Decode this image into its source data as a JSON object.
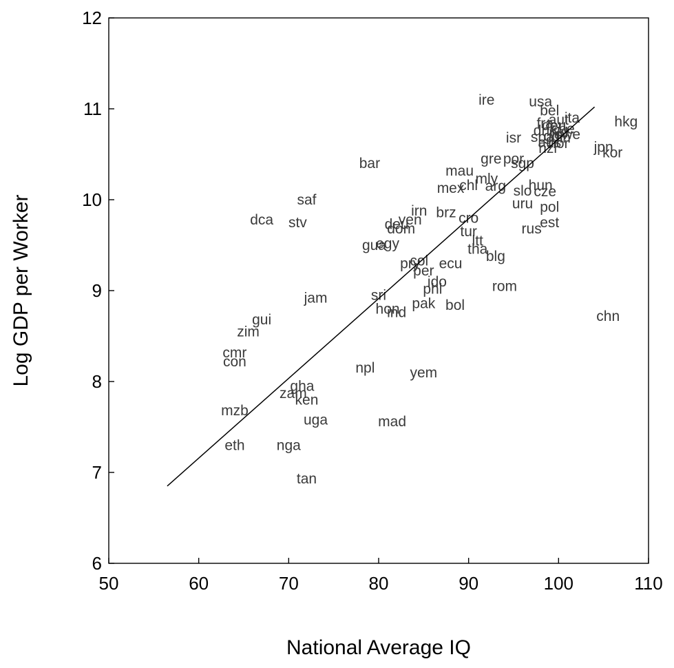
{
  "chart_data": {
    "type": "scatter",
    "xlabel": "National Average IQ",
    "ylabel": "Log GDP per Worker",
    "xlim": [
      50,
      110
    ],
    "ylim": [
      6,
      12
    ],
    "xticks": [
      50,
      60,
      70,
      80,
      90,
      100,
      110
    ],
    "yticks": [
      6,
      7,
      8,
      9,
      10,
      11,
      12
    ],
    "fit_line": {
      "x": [
        56.5,
        104
      ],
      "y": [
        6.85,
        11.02
      ]
    },
    "points": [
      {
        "label": "ire",
        "x": 92,
        "y": 11.1
      },
      {
        "label": "usa",
        "x": 98,
        "y": 11.08
      },
      {
        "label": "bel",
        "x": 99,
        "y": 10.98
      },
      {
        "label": "ita",
        "x": 101.5,
        "y": 10.9
      },
      {
        "label": "aut",
        "x": 100,
        "y": 10.88
      },
      {
        "label": "fra",
        "x": 98.5,
        "y": 10.84
      },
      {
        "label": "deu",
        "x": 99.5,
        "y": 10.82
      },
      {
        "label": "che",
        "x": 100.5,
        "y": 10.78
      },
      {
        "label": "dnk",
        "x": 98.5,
        "y": 10.76
      },
      {
        "label": "nld",
        "x": 100,
        "y": 10.74
      },
      {
        "label": "swe",
        "x": 101,
        "y": 10.72
      },
      {
        "label": "gbr",
        "x": 99.5,
        "y": 10.7
      },
      {
        "label": "spa",
        "x": 98.2,
        "y": 10.69
      },
      {
        "label": "fin",
        "x": 100.5,
        "y": 10.68
      },
      {
        "label": "hkg",
        "x": 107.5,
        "y": 10.86
      },
      {
        "label": "isr",
        "x": 95,
        "y": 10.68
      },
      {
        "label": "aus",
        "x": 99,
        "y": 10.63
      },
      {
        "label": "nor",
        "x": 100,
        "y": 10.62
      },
      {
        "label": "nzl",
        "x": 98.8,
        "y": 10.57
      },
      {
        "label": "jpn",
        "x": 105,
        "y": 10.58
      },
      {
        "label": "kor",
        "x": 106,
        "y": 10.52
      },
      {
        "label": "gre",
        "x": 92.5,
        "y": 10.45
      },
      {
        "label": "por",
        "x": 95,
        "y": 10.45
      },
      {
        "label": "sgp",
        "x": 96,
        "y": 10.4
      },
      {
        "label": "bar",
        "x": 79,
        "y": 10.4
      },
      {
        "label": "mau",
        "x": 89,
        "y": 10.32
      },
      {
        "label": "mly",
        "x": 92,
        "y": 10.23
      },
      {
        "label": "chl",
        "x": 90,
        "y": 10.16
      },
      {
        "label": "mex",
        "x": 88,
        "y": 10.13
      },
      {
        "label": "arg",
        "x": 93,
        "y": 10.15
      },
      {
        "label": "hun",
        "x": 98,
        "y": 10.16
      },
      {
        "label": "slo",
        "x": 96,
        "y": 10.1
      },
      {
        "label": "cze",
        "x": 98.5,
        "y": 10.09
      },
      {
        "label": "uru",
        "x": 96,
        "y": 9.96
      },
      {
        "label": "pol",
        "x": 99,
        "y": 9.92
      },
      {
        "label": "saf",
        "x": 72,
        "y": 10.0
      },
      {
        "label": "irn",
        "x": 84.5,
        "y": 9.88
      },
      {
        "label": "brz",
        "x": 87.5,
        "y": 9.86
      },
      {
        "label": "ven",
        "x": 83.5,
        "y": 9.78
      },
      {
        "label": "cro",
        "x": 90,
        "y": 9.8
      },
      {
        "label": "dca",
        "x": 67,
        "y": 9.78
      },
      {
        "label": "stv",
        "x": 71,
        "y": 9.75
      },
      {
        "label": "est",
        "x": 99,
        "y": 9.75
      },
      {
        "label": "deu2",
        "x": 82,
        "y": 9.73
      },
      {
        "label": "rus",
        "x": 97,
        "y": 9.68
      },
      {
        "label": "tur",
        "x": 90,
        "y": 9.65
      },
      {
        "label": "dom",
        "x": 82.5,
        "y": 9.68
      },
      {
        "label": "gua",
        "x": 79.5,
        "y": 9.5
      },
      {
        "label": "egy",
        "x": 81,
        "y": 9.52
      },
      {
        "label": "ltt",
        "x": 91,
        "y": 9.55
      },
      {
        "label": "tha",
        "x": 91,
        "y": 9.46
      },
      {
        "label": "blg",
        "x": 93,
        "y": 9.38
      },
      {
        "label": "col",
        "x": 84.5,
        "y": 9.33
      },
      {
        "label": "pry",
        "x": 83.5,
        "y": 9.3
      },
      {
        "label": "ecu",
        "x": 88,
        "y": 9.3
      },
      {
        "label": "per",
        "x": 85,
        "y": 9.22
      },
      {
        "label": "ido",
        "x": 86.5,
        "y": 9.1
      },
      {
        "label": "rom",
        "x": 94,
        "y": 9.05
      },
      {
        "label": "phl",
        "x": 86,
        "y": 9.02
      },
      {
        "label": "jam",
        "x": 73,
        "y": 8.92
      },
      {
        "label": "sri",
        "x": 80,
        "y": 8.95
      },
      {
        "label": "pak",
        "x": 85,
        "y": 8.86
      },
      {
        "label": "bol",
        "x": 88.5,
        "y": 8.84
      },
      {
        "label": "hon",
        "x": 81,
        "y": 8.8
      },
      {
        "label": "ind",
        "x": 82,
        "y": 8.76
      },
      {
        "label": "chn",
        "x": 105.5,
        "y": 8.72
      },
      {
        "label": "gui",
        "x": 67,
        "y": 8.68
      },
      {
        "label": "zim",
        "x": 65.5,
        "y": 8.55
      },
      {
        "label": "cmr",
        "x": 64,
        "y": 8.32
      },
      {
        "label": "con",
        "x": 64,
        "y": 8.22
      },
      {
        "label": "npl",
        "x": 78.5,
        "y": 8.15
      },
      {
        "label": "yem",
        "x": 85,
        "y": 8.1
      },
      {
        "label": "gha",
        "x": 71.5,
        "y": 7.95
      },
      {
        "label": "zam",
        "x": 70.5,
        "y": 7.87
      },
      {
        "label": "ken",
        "x": 72,
        "y": 7.8
      },
      {
        "label": "mzb",
        "x": 64,
        "y": 7.68
      },
      {
        "label": "uga",
        "x": 73,
        "y": 7.58
      },
      {
        "label": "mad",
        "x": 81.5,
        "y": 7.56
      },
      {
        "label": "eth",
        "x": 64,
        "y": 7.3
      },
      {
        "label": "nga",
        "x": 70,
        "y": 7.3
      },
      {
        "label": "tan",
        "x": 72,
        "y": 6.93
      }
    ]
  }
}
